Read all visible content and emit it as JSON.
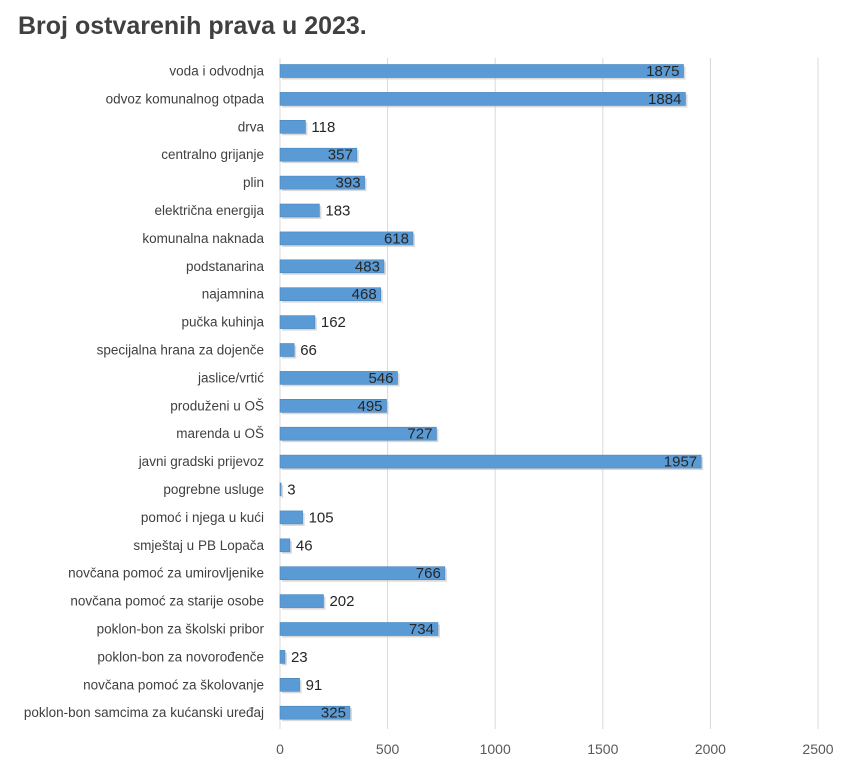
{
  "chart_data": {
    "type": "bar",
    "orientation": "horizontal",
    "title": "Broj ostvarenih prava u 2023.",
    "categories": [
      "voda i odvodnja",
      "odvoz komunalnog otpada",
      "drva",
      "centralno grijanje",
      "plin",
      "električna energija",
      "komunalna naknada",
      "podstanarina",
      "najamnina",
      "pučka kuhinja",
      "specijalna hrana za dojenče",
      "jaslice/vrtić",
      "produženi u OŠ",
      "marenda u OŠ",
      "javni gradski prijevoz",
      "pogrebne usluge",
      "pomoć i njega u kući",
      "smještaj u PB Lopača",
      "novčana pomoć za umirovljenike",
      "novčana pomoć za starije osobe",
      "poklon-bon za školski pribor",
      "poklon-bon za novorođenče",
      "novčana pomoć za školovanje",
      "poklon-bon samcima za kućanski uređaj"
    ],
    "values": [
      1875,
      1884,
      118,
      357,
      393,
      183,
      618,
      483,
      468,
      162,
      66,
      546,
      495,
      727,
      1957,
      3,
      105,
      46,
      766,
      202,
      734,
      23,
      91,
      325
    ],
    "xlim": [
      0,
      2500
    ],
    "xticks": [
      "0",
      "500",
      "1000",
      "1500",
      "2000",
      "2500"
    ],
    "grid": true,
    "legend": "none",
    "colors": {
      "bar": "#5b9bd5",
      "bar_edge": "#4a86c0",
      "grid": "#d9d9d9",
      "shadow": "#bfbfbf"
    }
  }
}
